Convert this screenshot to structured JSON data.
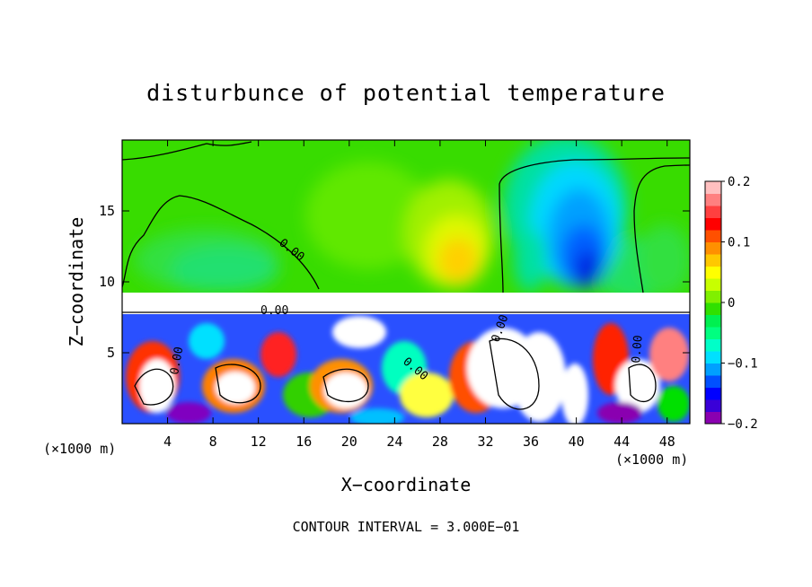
{
  "chart_data": {
    "type": "heatmap",
    "title": "disturbunce of potential temperature",
    "xlabel": "X−coordinate",
    "ylabel": "Z−coordinate",
    "x_unit": "(×1000 m)",
    "z_unit": "(×1000 m)",
    "xlim": [
      0,
      50
    ],
    "ylim": [
      0,
      20
    ],
    "x_ticks": [
      "4",
      "8",
      "12",
      "16",
      "20",
      "24",
      "28",
      "32",
      "36",
      "40",
      "44",
      "48"
    ],
    "y_ticks": [
      "5",
      "10",
      "15"
    ],
    "colorbar": {
      "range": [
        -0.2,
        0.2
      ],
      "tick_labels": [
        "0.2",
        "0.1",
        "0",
        "−0.1",
        "−0.2"
      ],
      "colors": [
        "#8a00b0",
        "#3a00d8",
        "#0000ff",
        "#0050ff",
        "#00a0ff",
        "#00e0ff",
        "#00ffc8",
        "#00ff80",
        "#00f050",
        "#30e000",
        "#80f000",
        "#c8ff00",
        "#ffff00",
        "#ffc800",
        "#ff9000",
        "#ff5000",
        "#ff0000",
        "#ff4040",
        "#ff8080",
        "#ffc0c0"
      ]
    },
    "contour_labels": [
      "0.00",
      "0.00",
      "0.00",
      "0.00",
      "0.00",
      "0.00"
    ],
    "contour_interval": "CONTOUR INTERVAL = 3.000E−01"
  }
}
